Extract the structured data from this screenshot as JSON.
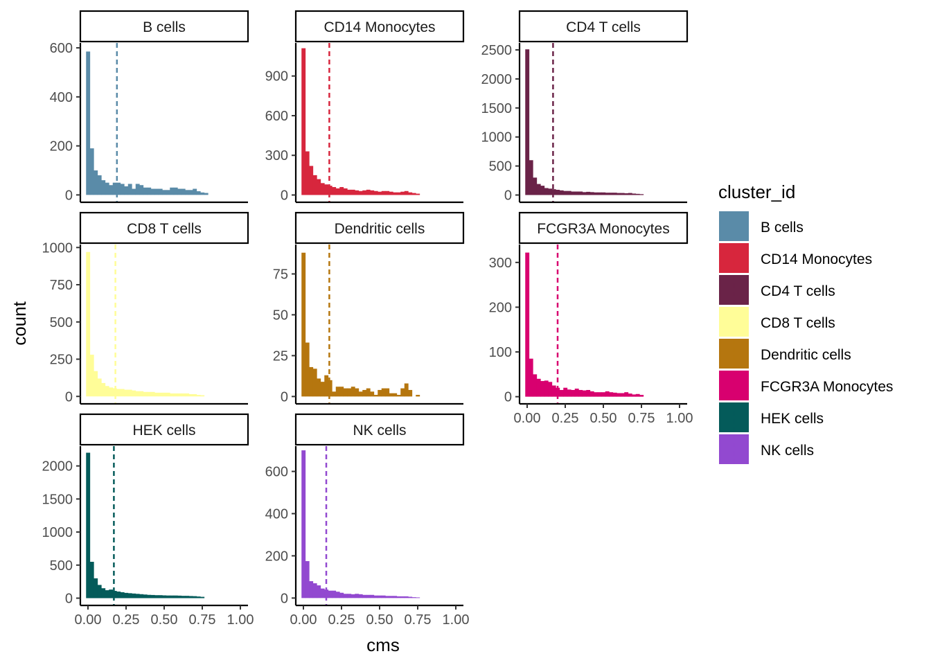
{
  "chart_data": {
    "type": "bar",
    "subtype": "faceted-histogram",
    "xlabel": "cms",
    "ylabel": "count",
    "x_ticks": [
      0,
      0.25,
      0.5,
      0.75,
      1
    ],
    "x_tick_labels": [
      "0.00",
      "0.25",
      "0.50",
      "0.75",
      "1.00"
    ],
    "xlim": [
      -0.05,
      1.05
    ],
    "bin_width": 0.025,
    "grid": false,
    "legend": {
      "title": "cluster_id",
      "placement": "right",
      "entries": [
        "B cells",
        "CD14 Monocytes",
        "CD4 T cells",
        "CD8 T cells",
        "Dendritic cells",
        "FCGR3A Monocytes",
        "HEK cells",
        "NK cells"
      ]
    },
    "panels": [
      {
        "name": "B cells",
        "color": "#5A8BA8",
        "yticks": [
          0,
          200,
          400,
          600
        ],
        "ytick_labels": [
          "0",
          "200",
          "400",
          "600"
        ],
        "ylim": [
          -30,
          620
        ],
        "mean_line": 0.19,
        "show_x_axis": false,
        "values": [
          585,
          190,
          100,
          80,
          60,
          50,
          40,
          50,
          50,
          45,
          35,
          45,
          25,
          45,
          40,
          30,
          30,
          25,
          25,
          25,
          20,
          20,
          30,
          30,
          25,
          25,
          20,
          20,
          25,
          15,
          10,
          8
        ]
      },
      {
        "name": "CD14 Monocytes",
        "color": "#D7263D",
        "yticks": [
          0,
          300,
          600,
          900
        ],
        "ytick_labels": [
          "0",
          "300",
          "600",
          "900"
        ],
        "ylim": [
          -55,
          1150
        ],
        "mean_line": 0.17,
        "show_x_axis": false,
        "values": [
          1110,
          330,
          220,
          150,
          120,
          90,
          80,
          70,
          60,
          50,
          60,
          50,
          40,
          40,
          35,
          30,
          35,
          40,
          35,
          30,
          25,
          30,
          30,
          25,
          20,
          20,
          25,
          30,
          20,
          15,
          10
        ]
      },
      {
        "name": "CD4 T cells",
        "color": "#6A2348",
        "yticks": [
          0,
          500,
          1000,
          1500,
          2000,
          2500
        ],
        "ytick_labels": [
          "0",
          "500",
          "1000",
          "1500",
          "2000",
          "2500"
        ],
        "ylim": [
          -125,
          2620
        ],
        "mean_line": 0.17,
        "show_x_axis": false,
        "values": [
          2510,
          600,
          300,
          190,
          160,
          120,
          110,
          100,
          90,
          80,
          70,
          70,
          60,
          60,
          60,
          50,
          55,
          50,
          45,
          45,
          45,
          40,
          40,
          40,
          35,
          35,
          30,
          35,
          25,
          20,
          15
        ]
      },
      {
        "name": "CD8 T cells",
        "color": "#FFFD98",
        "yticks": [
          0,
          250,
          500,
          750,
          1000
        ],
        "ytick_labels": [
          "0",
          "250",
          "500",
          "750",
          "1000"
        ],
        "ylim": [
          -50,
          1020
        ],
        "mean_line": 0.18,
        "show_x_axis": false,
        "values": [
          970,
          280,
          170,
          120,
          90,
          70,
          60,
          55,
          50,
          50,
          45,
          45,
          40,
          35,
          35,
          30,
          30,
          30,
          25,
          25,
          25,
          25,
          20,
          20,
          20,
          20,
          20,
          15,
          15,
          10,
          8
        ]
      },
      {
        "name": "Dendritic cells",
        "color": "#B5760F",
        "yticks": [
          0,
          25,
          50,
          75
        ],
        "ytick_labels": [
          "0",
          "25",
          "50",
          "75"
        ],
        "ylim": [
          -4.5,
          93
        ],
        "mean_line": 0.17,
        "show_x_axis": false,
        "values": [
          88,
          33,
          18,
          17,
          11,
          9,
          13,
          10,
          3,
          6,
          6,
          5,
          5,
          6,
          5,
          3,
          4,
          5,
          3,
          1,
          4,
          5,
          5,
          2,
          2,
          1,
          5,
          8,
          4,
          0,
          1
        ]
      },
      {
        "name": "FCGR3A Monocytes",
        "color": "#D8006F",
        "yticks": [
          0,
          100,
          200,
          300
        ],
        "ytick_labels": [
          "0",
          "100",
          "200",
          "300"
        ],
        "ylim": [
          -16,
          340
        ],
        "mean_line": 0.2,
        "show_x_axis": true,
        "values": [
          322,
          85,
          50,
          40,
          35,
          36,
          33,
          25,
          20,
          15,
          20,
          16,
          15,
          18,
          15,
          14,
          15,
          12,
          10,
          10,
          10,
          12,
          10,
          9,
          8,
          8,
          10,
          7,
          5,
          6,
          4
        ]
      },
      {
        "name": "HEK cells",
        "color": "#045B5A",
        "yticks": [
          0,
          500,
          1000,
          1500,
          2000
        ],
        "ytick_labels": [
          "0",
          "500",
          "1000",
          "1500",
          "2000"
        ],
        "ylim": [
          -110,
          2300
        ],
        "mean_line": 0.17,
        "show_x_axis": true,
        "values": [
          2200,
          550,
          300,
          200,
          150,
          120,
          130,
          110,
          100,
          90,
          80,
          75,
          70,
          65,
          60,
          55,
          50,
          48,
          45,
          45,
          42,
          40,
          40,
          40,
          38,
          35,
          35,
          32,
          30,
          25,
          20
        ]
      },
      {
        "name": "NK cells",
        "color": "#9249D0",
        "yticks": [
          0,
          200,
          400,
          600
        ],
        "ytick_labels": [
          "0",
          "200",
          "400",
          "600"
        ],
        "ylim": [
          -35,
          720
        ],
        "mean_line": 0.15,
        "show_x_axis": true,
        "values": [
          700,
          175,
          80,
          70,
          60,
          45,
          40,
          35,
          35,
          30,
          25,
          20,
          20,
          18,
          20,
          18,
          15,
          15,
          15,
          12,
          12,
          12,
          10,
          10,
          10,
          8,
          8,
          8,
          6,
          4,
          3
        ]
      }
    ]
  }
}
